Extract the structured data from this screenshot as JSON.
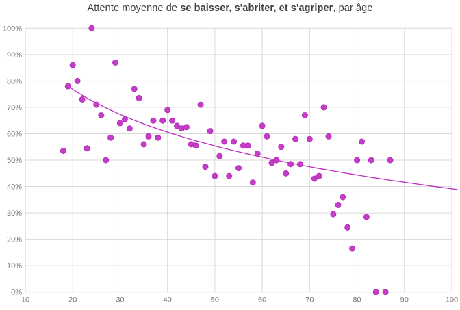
{
  "title": {
    "prefix": "Attente moyenne de ",
    "bold": "se baisser, s'abriter, et s'agriper",
    "suffix": ", par âge"
  },
  "chart_data": {
    "type": "scatter",
    "title": "Attente moyenne de se baisser, s'abriter, et s'agriper, par âge",
    "xlabel": "",
    "ylabel": "",
    "xlim": [
      10,
      100
    ],
    "ylim": [
      0,
      100
    ],
    "x_ticks": [
      10,
      20,
      30,
      40,
      50,
      60,
      70,
      80,
      90,
      100
    ],
    "y_tick_labels": [
      "0%",
      "10%",
      "20%",
      "30%",
      "40%",
      "50%",
      "60%",
      "70%",
      "80%",
      "90%",
      "100%"
    ],
    "y_tick_values": [
      0,
      10,
      20,
      30,
      40,
      50,
      60,
      70,
      80,
      90,
      100
    ],
    "grid": "both",
    "legend": "none",
    "points": [
      [
        18,
        53.5
      ],
      [
        19,
        78
      ],
      [
        20,
        86
      ],
      [
        21,
        80
      ],
      [
        22,
        73
      ],
      [
        23,
        54.5
      ],
      [
        24,
        100
      ],
      [
        25,
        71
      ],
      [
        26,
        67
      ],
      [
        27,
        50
      ],
      [
        28,
        58.5
      ],
      [
        29,
        87
      ],
      [
        30,
        64
      ],
      [
        31,
        65.5
      ],
      [
        32,
        62
      ],
      [
        33,
        77
      ],
      [
        34,
        73.5
      ],
      [
        35,
        56
      ],
      [
        36,
        59
      ],
      [
        37,
        65
      ],
      [
        38,
        58.5
      ],
      [
        39,
        65
      ],
      [
        40,
        69
      ],
      [
        41,
        65
      ],
      [
        42,
        63
      ],
      [
        43,
        62
      ],
      [
        44,
        62.5
      ],
      [
        45,
        56
      ],
      [
        46,
        55.5
      ],
      [
        47,
        71
      ],
      [
        48,
        47.5
      ],
      [
        49,
        61
      ],
      [
        50,
        44
      ],
      [
        51,
        51.5
      ],
      [
        52,
        57
      ],
      [
        53,
        44
      ],
      [
        54,
        57
      ],
      [
        55,
        47
      ],
      [
        56,
        55.5
      ],
      [
        57,
        55.5
      ],
      [
        58,
        41.5
      ],
      [
        59,
        52.5
      ],
      [
        60,
        63
      ],
      [
        61,
        59
      ],
      [
        62,
        49
      ],
      [
        63,
        50
      ],
      [
        64,
        55
      ],
      [
        65,
        45
      ],
      [
        66,
        48.5
      ],
      [
        67,
        58
      ],
      [
        68,
        48.5
      ],
      [
        69,
        67
      ],
      [
        70,
        58
      ],
      [
        71,
        43
      ],
      [
        72,
        44
      ],
      [
        73,
        70
      ],
      [
        74,
        59
      ],
      [
        75,
        29.5
      ],
      [
        76,
        33
      ],
      [
        77,
        36
      ],
      [
        78,
        24.5
      ],
      [
        79,
        16.5
      ],
      [
        80,
        50
      ],
      [
        81,
        57
      ],
      [
        82,
        28.5
      ],
      [
        83,
        50
      ],
      [
        84,
        0
      ],
      [
        86,
        0
      ],
      [
        87,
        50
      ]
    ],
    "trendline": {
      "type": "logarithmic",
      "formula": "y = 147 - 23.42*ln(x)",
      "a": 147,
      "b": -23.42,
      "x_start": 18.8,
      "x_end": 101.5
    },
    "colors": {
      "marker_fill": "#C53CC8",
      "marker_stroke": "#AE2BB2",
      "trend": "#BB2FBF",
      "grid": "#D9D9D9",
      "axis": "#D2D2D2",
      "tick_label": "#757575",
      "title": "#3F3F3F"
    }
  }
}
